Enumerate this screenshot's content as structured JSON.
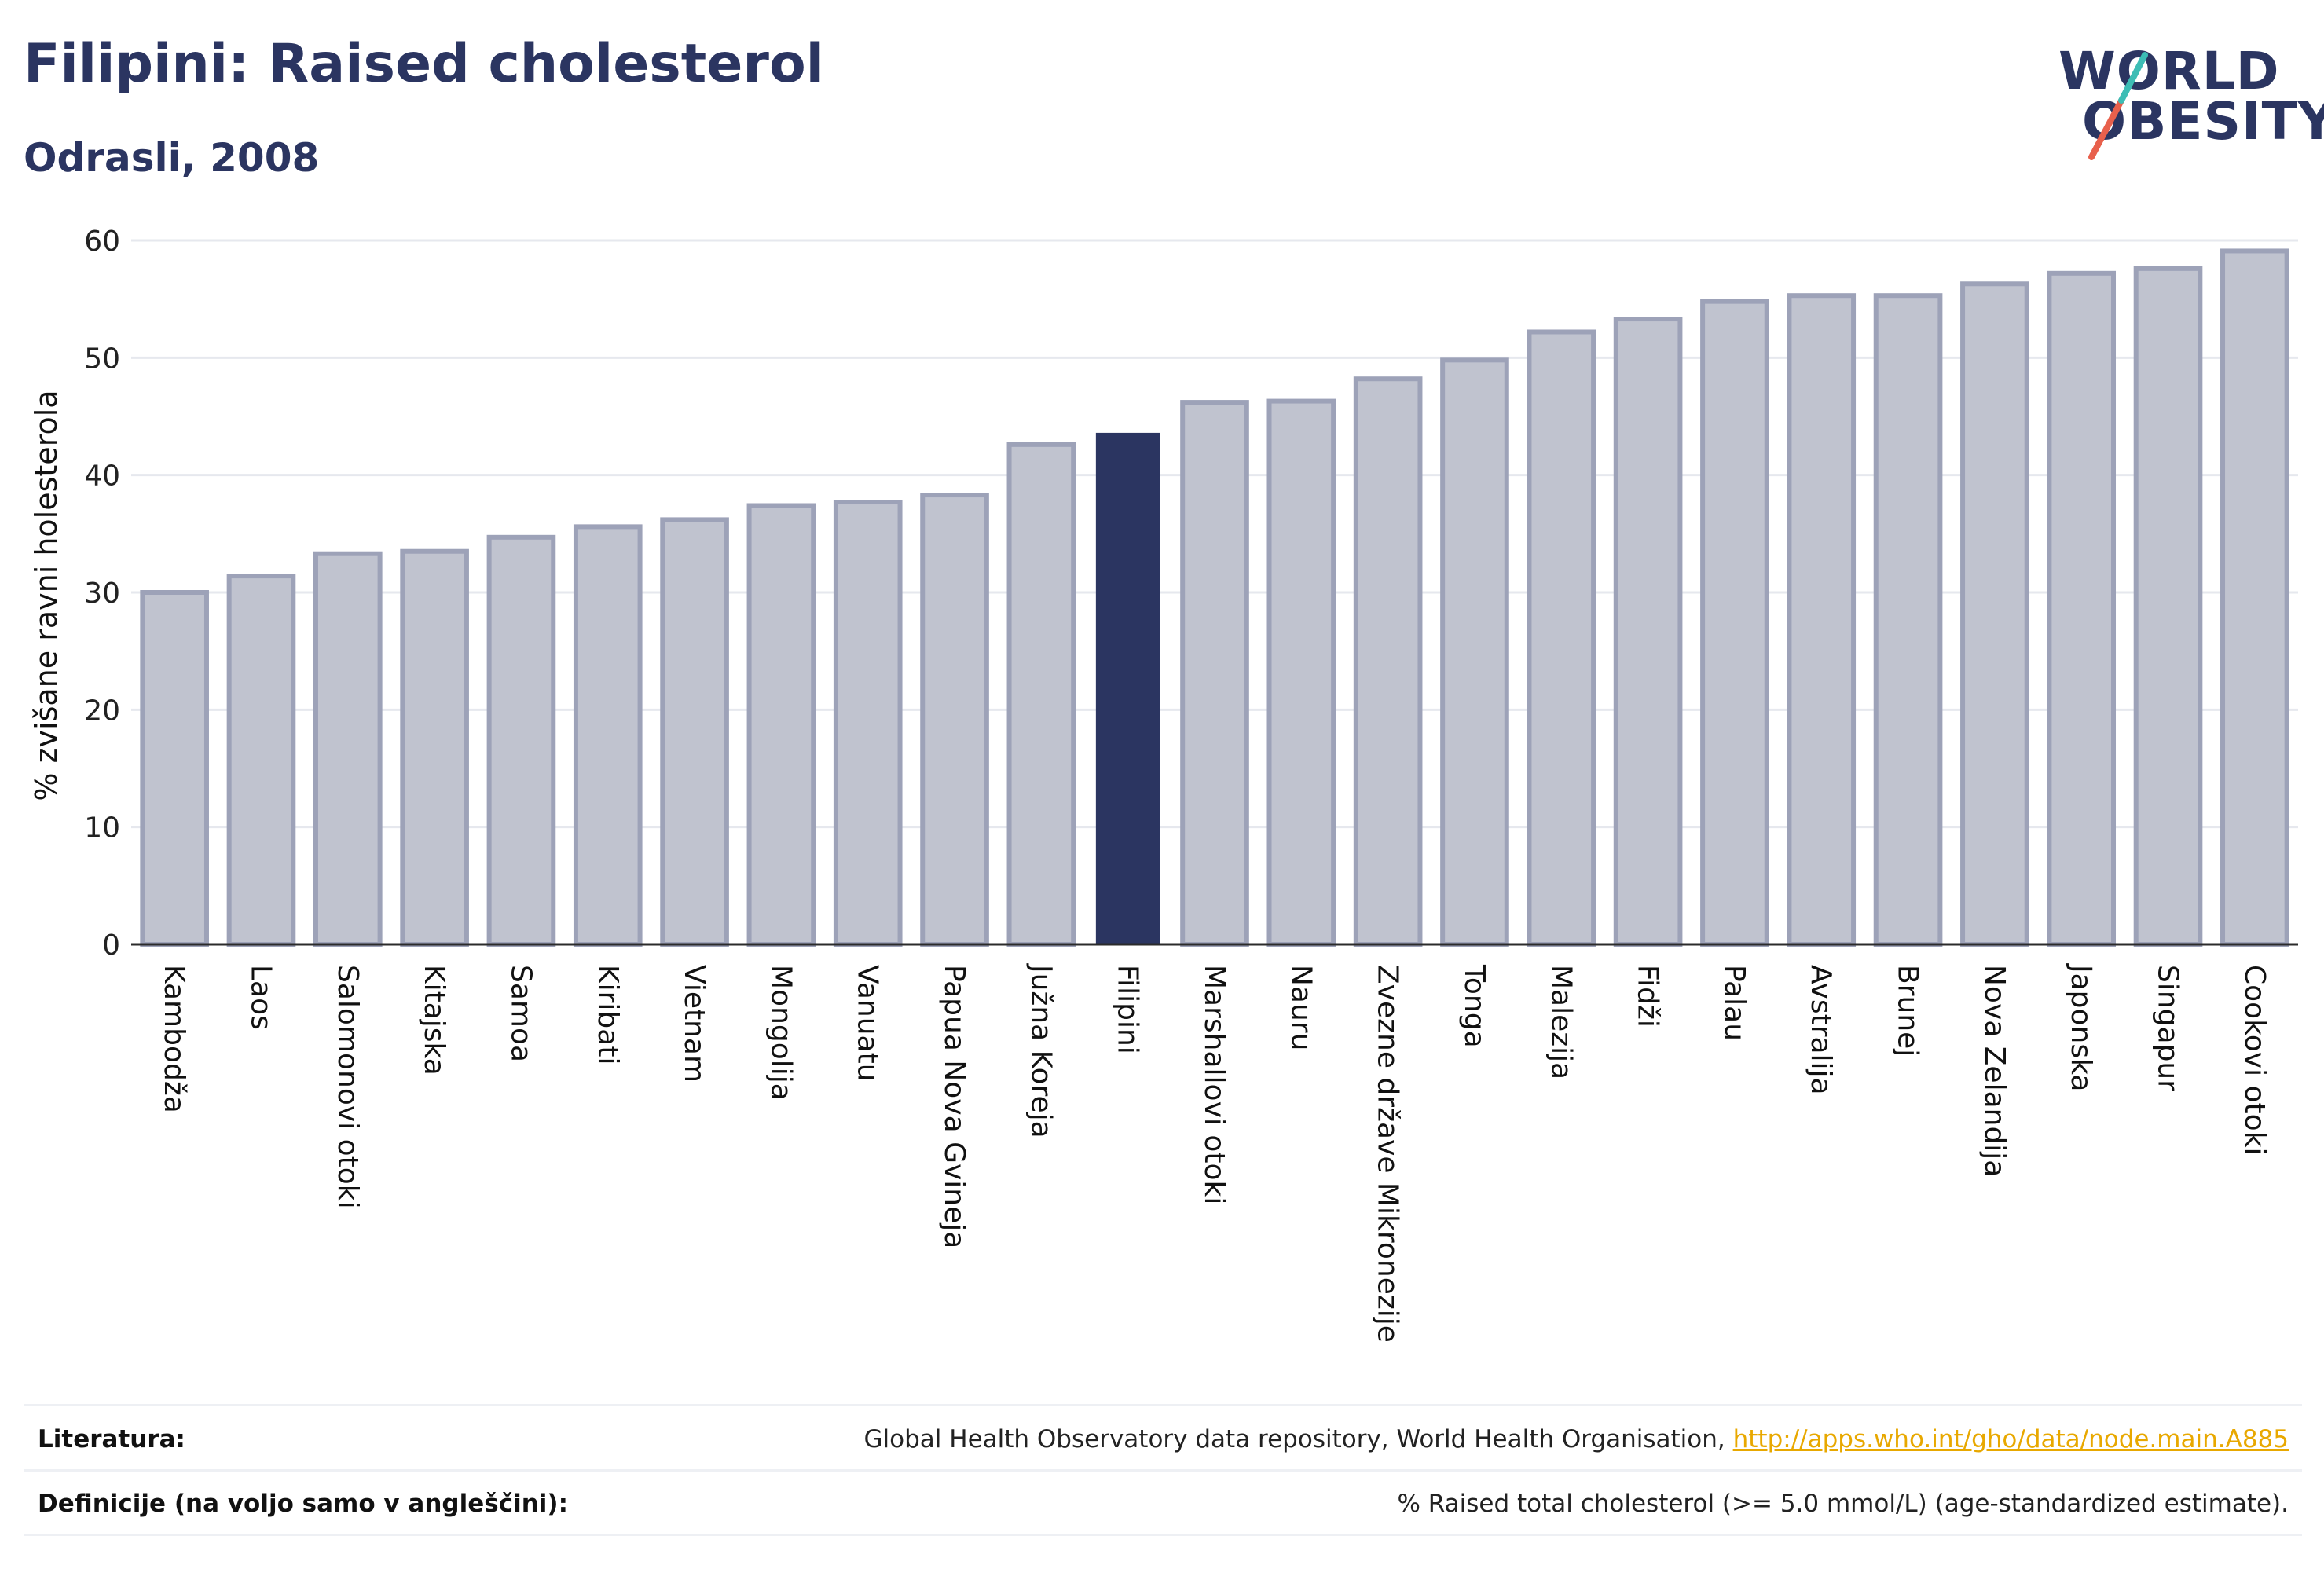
{
  "header": {
    "title": "Filipini: Raised cholesterol",
    "subtitle": "Odrasli, 2008"
  },
  "logo": {
    "line1": "WORLD",
    "line2": "OBESITY",
    "colors": {
      "text": "#2b3561",
      "slash_red": "#e8604c",
      "slash_teal": "#3dbdb5"
    }
  },
  "chart_data": {
    "type": "bar",
    "title": "",
    "xlabel": "",
    "ylabel": "% zvišane ravni holesterola",
    "ylim": [
      0,
      60
    ],
    "yticks": [
      0,
      10,
      20,
      30,
      40,
      50,
      60
    ],
    "grid": true,
    "highlight": "Filipini",
    "colors": {
      "bar": "#c0c3cf",
      "bar_border": "#9da2b8",
      "highlight": "#2b3561",
      "grid": "#e6e8ee",
      "axis": "#2b2b2b"
    },
    "categories": [
      "Kambodža",
      "Laos",
      "Salomonovi otoki",
      "Kitajska",
      "Samoa",
      "Kiribati",
      "Vietnam",
      "Mongolija",
      "Vanuatu",
      "Papua Nova Gvineja",
      "Južna Koreja",
      "Filipini",
      "Marshallovi otoki",
      "Nauru",
      "Zvezne države Mikronezije",
      "Tonga",
      "Malezija",
      "Fidži",
      "Palau",
      "Avstralija",
      "Brunej",
      "Nova Zelandija",
      "Japonska",
      "Singapur",
      "Cookovi otoki"
    ],
    "values": [
      30.0,
      31.4,
      33.3,
      33.5,
      34.7,
      35.6,
      36.2,
      37.4,
      37.7,
      38.3,
      42.6,
      43.6,
      46.2,
      46.3,
      48.2,
      49.8,
      52.2,
      53.3,
      54.8,
      55.3,
      55.3,
      56.3,
      57.2,
      57.6,
      59.1
    ]
  },
  "footer": {
    "literature_label": "Literatura:",
    "literature_text": "Global Health Observatory data repository, World Health Organisation, ",
    "literature_link": "http://apps.who.int/gho/data/node.main.A885",
    "definition_label": "Definicije (na voljo samo v angleščini):",
    "definition_text": "% Raised total cholesterol (>= 5.0 mmol/L) (age-standardized estimate)."
  }
}
